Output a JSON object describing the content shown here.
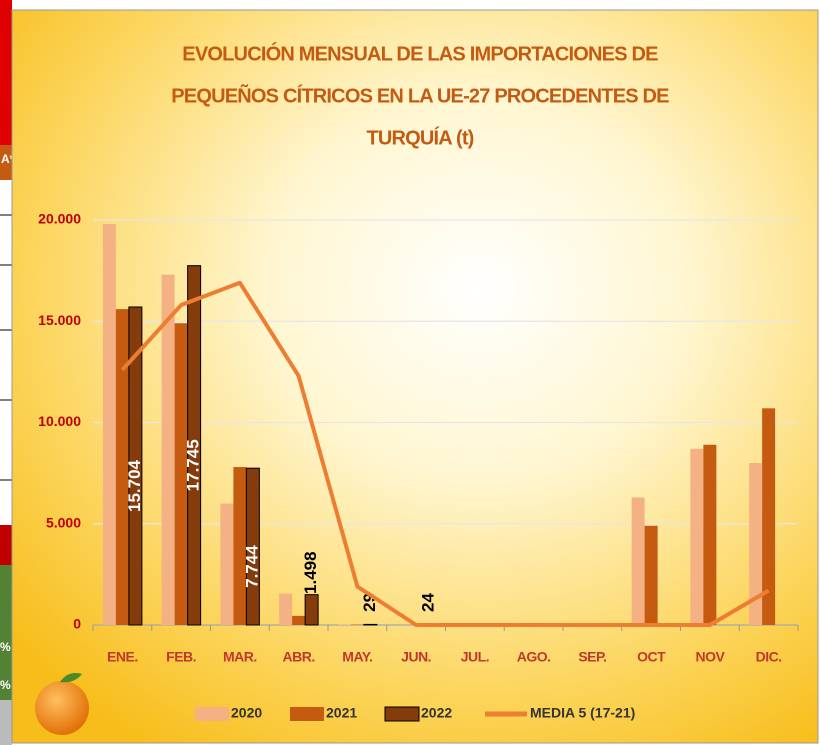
{
  "side_labels": [
    "A*",
    "%",
    "%"
  ],
  "chart_data": {
    "type": "bar",
    "title": [
      "EVOLUCIÓN MENSUAL DE LAS IMPORTACIONES DE",
      "PEQUEÑOS CÍTRICOS EN LA UE-27 PROCEDENTES DE",
      "TURQUÍA (t)"
    ],
    "categories": [
      "ENE.",
      "FEB.",
      "MAR.",
      "ABR.",
      "MAY.",
      "JUN.",
      "JUL.",
      "AGO.",
      "SEP.",
      "OCT",
      "NOV",
      "DIC."
    ],
    "series": [
      {
        "name": "2020",
        "type": "bar",
        "color": "#f4b183",
        "values": [
          19800,
          17300,
          6000,
          1550,
          30,
          0,
          0,
          0,
          0,
          6300,
          8700,
          8000
        ]
      },
      {
        "name": "2021",
        "type": "bar",
        "color": "#c55a11",
        "values": [
          15600,
          14900,
          7800,
          450,
          20,
          0,
          0,
          0,
          0,
          4900,
          8900,
          10700
        ]
      },
      {
        "name": "2022",
        "type": "bar",
        "color": "#843c0c",
        "values": [
          15704,
          17745,
          7744,
          1498,
          29,
          24,
          null,
          null,
          null,
          null,
          null,
          null
        ],
        "value_labels": [
          "15.704",
          "17.745",
          "7.744",
          "1.498",
          "29",
          "24",
          null,
          null,
          null,
          null,
          null,
          null
        ]
      },
      {
        "name": "MEDIA 5 (17-21)",
        "type": "line",
        "color": "#ed7d31",
        "values": [
          12600,
          15800,
          16900,
          12300,
          1900,
          0,
          0,
          0,
          0,
          0,
          0,
          1700
        ]
      }
    ],
    "ylim": [
      0,
      20000
    ],
    "yticks": [
      0,
      {
        "value": 5000,
        "label": "5.000"
      },
      {
        "value": 10000,
        "label": "10.000"
      },
      {
        "value": 15000,
        "label": "15.000"
      },
      {
        "value": 20000,
        "label": "20.000"
      }
    ],
    "grid": true,
    "legend": "bottom"
  }
}
